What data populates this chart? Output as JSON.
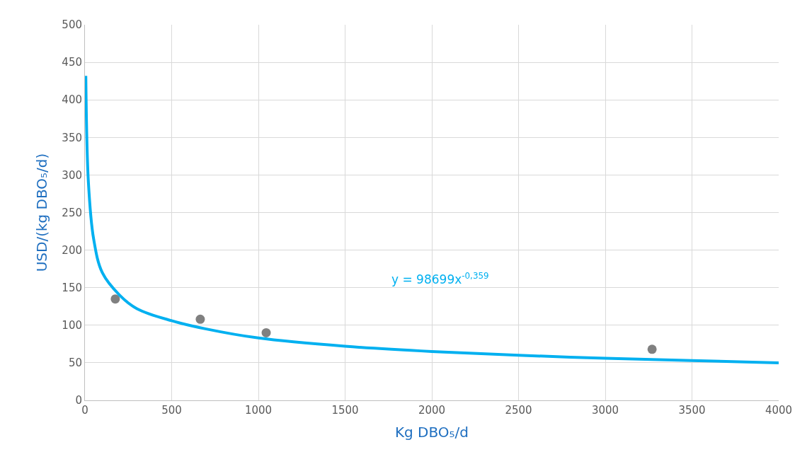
{
  "chart_data": {
    "type": "scatter",
    "xlabel": "Kg DBO₅/d",
    "ylabel": "USD/(kg DBO₅/d)",
    "series": [
      {
        "color": "#808080",
        "marker": "circle",
        "x": [
          175,
          665,
          1045,
          3270
        ],
        "values": [
          135,
          108,
          90,
          68
        ]
      },
      {
        "type": "line",
        "color": "#00b0f0",
        "marker": "none",
        "x": [
          5,
          20,
          50,
          100,
          200,
          300,
          500,
          700,
          1000,
          1500,
          2000,
          2500,
          3000,
          3500,
          4000
        ],
        "values": [
          432,
          290,
          215,
          170,
          140,
          122,
          106,
          95,
          83,
          72,
          65,
          60,
          56,
          53,
          50
        ]
      }
    ],
    "annotations": [
      "y = 98699x$^{-0,359}$"
    ],
    "xlim": [
      0,
      4000
    ],
    "xticks": [
      0,
      500,
      1000,
      1500,
      2000,
      2500,
      3000,
      3500,
      4000
    ],
    "ylim": [
      0,
      500
    ],
    "yticks": [
      0,
      50,
      100,
      150,
      200,
      250,
      300,
      350,
      400,
      450,
      500
    ],
    "grid": true,
    "legend": false
  }
}
